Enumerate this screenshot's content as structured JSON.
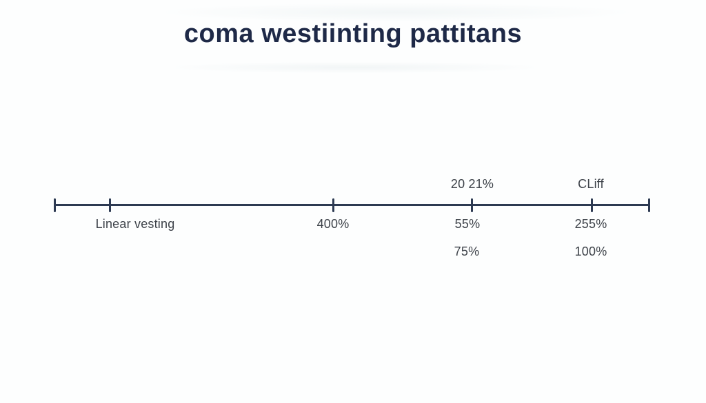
{
  "title": "coma westiinting pattitans",
  "colors": {
    "title": "#1e2947",
    "axis": "#2d3a52",
    "labels": "#3d4249",
    "background": "#fdfefe"
  },
  "timeline": {
    "above": [
      {
        "text": "20 21%"
      },
      {
        "text": "CLiff"
      }
    ],
    "row1": [
      {
        "text": "Linear vesting"
      },
      {
        "text": "400%"
      },
      {
        "text": "55%"
      },
      {
        "text": "255%"
      }
    ],
    "row2": [
      {
        "text": "75%"
      },
      {
        "text": "100%"
      }
    ]
  }
}
